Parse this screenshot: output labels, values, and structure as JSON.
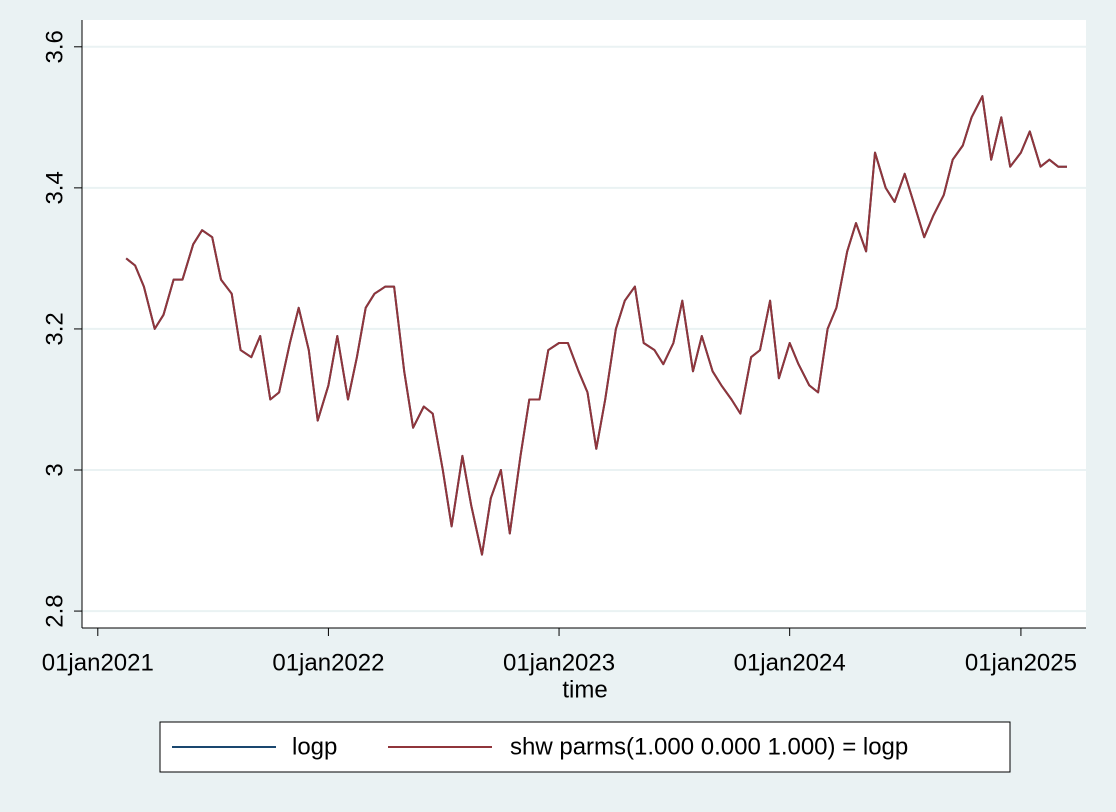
{
  "chart_data": {
    "type": "line",
    "x_label": "time",
    "x": [
      "2021-02-15",
      "2021-03-01",
      "2021-03-15",
      "2021-04-01",
      "2021-04-15",
      "2021-05-01",
      "2021-05-15",
      "2021-06-01",
      "2021-06-15",
      "2021-07-01",
      "2021-07-15",
      "2021-08-01",
      "2021-08-15",
      "2021-09-01",
      "2021-09-15",
      "2021-10-01",
      "2021-10-15",
      "2021-11-01",
      "2021-11-15",
      "2021-12-01",
      "2021-12-15",
      "2022-01-01",
      "2022-01-15",
      "2022-02-01",
      "2022-02-15",
      "2022-03-01",
      "2022-03-15",
      "2022-04-01",
      "2022-04-15",
      "2022-05-01",
      "2022-05-15",
      "2022-06-01",
      "2022-06-15",
      "2022-07-01",
      "2022-07-15",
      "2022-08-01",
      "2022-08-15",
      "2022-09-01",
      "2022-09-15",
      "2022-10-01",
      "2022-10-15",
      "2022-11-01",
      "2022-11-15",
      "2022-12-01",
      "2022-12-15",
      "2023-01-01",
      "2023-01-15",
      "2023-02-01",
      "2023-02-15",
      "2023-03-01",
      "2023-03-15",
      "2023-04-01",
      "2023-04-15",
      "2023-05-01",
      "2023-05-15",
      "2023-06-01",
      "2023-06-15",
      "2023-07-01",
      "2023-07-15",
      "2023-08-01",
      "2023-08-15",
      "2023-09-01",
      "2023-09-15",
      "2023-10-01",
      "2023-10-15",
      "2023-11-01",
      "2023-11-15",
      "2023-12-01",
      "2023-12-15",
      "2024-01-01",
      "2024-01-15",
      "2024-02-01",
      "2024-02-15",
      "2024-03-01",
      "2024-03-15",
      "2024-04-01",
      "2024-04-15",
      "2024-05-01",
      "2024-05-15",
      "2024-06-01",
      "2024-06-15",
      "2024-07-01",
      "2024-07-15",
      "2024-08-01",
      "2024-08-15",
      "2024-09-01",
      "2024-09-15",
      "2024-10-01",
      "2024-10-15",
      "2024-11-01",
      "2024-11-15",
      "2024-12-01",
      "2024-12-15",
      "2025-01-01",
      "2025-01-15",
      "2025-02-01",
      "2025-02-15",
      "2025-03-01",
      "2025-03-15"
    ],
    "series": [
      {
        "name": "logp",
        "color": "#1a476f",
        "values": [
          3.3,
          3.29,
          3.26,
          3.2,
          3.22,
          3.27,
          3.27,
          3.32,
          3.34,
          3.33,
          3.27,
          3.25,
          3.17,
          3.16,
          3.19,
          3.1,
          3.11,
          3.18,
          3.23,
          3.17,
          3.07,
          3.12,
          3.19,
          3.1,
          3.16,
          3.23,
          3.25,
          3.26,
          3.26,
          3.14,
          3.06,
          3.09,
          3.08,
          3.0,
          2.92,
          3.02,
          2.95,
          2.88,
          2.96,
          3.0,
          2.91,
          3.02,
          3.1,
          3.1,
          3.17,
          3.18,
          3.18,
          3.14,
          3.11,
          3.03,
          3.1,
          3.2,
          3.24,
          3.26,
          3.18,
          3.17,
          3.15,
          3.18,
          3.24,
          3.14,
          3.19,
          3.14,
          3.12,
          3.1,
          3.08,
          3.16,
          3.17,
          3.24,
          3.13,
          3.18,
          3.15,
          3.12,
          3.11,
          3.2,
          3.23,
          3.31,
          3.35,
          3.31,
          3.45,
          3.4,
          3.38,
          3.42,
          3.38,
          3.33,
          3.36,
          3.39,
          3.44,
          3.46,
          3.5,
          3.53,
          3.44,
          3.5,
          3.43,
          3.45,
          3.48,
          3.43,
          3.44,
          3.43,
          3.43
        ]
      },
      {
        "name": "shw parms(1.000 0.000 1.000) = logp",
        "color": "#90353b",
        "values": [
          3.3,
          3.29,
          3.26,
          3.2,
          3.22,
          3.27,
          3.27,
          3.32,
          3.34,
          3.33,
          3.27,
          3.25,
          3.17,
          3.16,
          3.19,
          3.1,
          3.11,
          3.18,
          3.23,
          3.17,
          3.07,
          3.12,
          3.19,
          3.1,
          3.16,
          3.23,
          3.25,
          3.26,
          3.26,
          3.14,
          3.06,
          3.09,
          3.08,
          3.0,
          2.92,
          3.02,
          2.95,
          2.88,
          2.96,
          3.0,
          2.91,
          3.02,
          3.1,
          3.1,
          3.17,
          3.18,
          3.18,
          3.14,
          3.11,
          3.03,
          3.1,
          3.2,
          3.24,
          3.26,
          3.18,
          3.17,
          3.15,
          3.18,
          3.24,
          3.14,
          3.19,
          3.14,
          3.12,
          3.1,
          3.08,
          3.16,
          3.17,
          3.24,
          3.13,
          3.18,
          3.15,
          3.12,
          3.11,
          3.2,
          3.23,
          3.31,
          3.35,
          3.31,
          3.45,
          3.4,
          3.38,
          3.42,
          3.38,
          3.33,
          3.36,
          3.39,
          3.44,
          3.46,
          3.5,
          3.53,
          3.44,
          3.5,
          3.43,
          3.45,
          3.48,
          3.43,
          3.44,
          3.43,
          3.43
        ]
      }
    ],
    "xlim": [
      "2020-12-07",
      "2025-04-14"
    ],
    "xticks": [
      {
        "value": "2021-01-01",
        "label": "01jan2021"
      },
      {
        "value": "2022-01-01",
        "label": "01jan2022"
      },
      {
        "value": "2023-01-01",
        "label": "01jan2023"
      },
      {
        "value": "2024-01-01",
        "label": "01jan2024"
      },
      {
        "value": "2025-01-01",
        "label": "01jan2025"
      }
    ],
    "ylim": [
      2.776,
      3.638
    ],
    "yticks": [
      2.8,
      3,
      3.2,
      3.4,
      3.6
    ],
    "grid": true,
    "legend": "bottom"
  }
}
